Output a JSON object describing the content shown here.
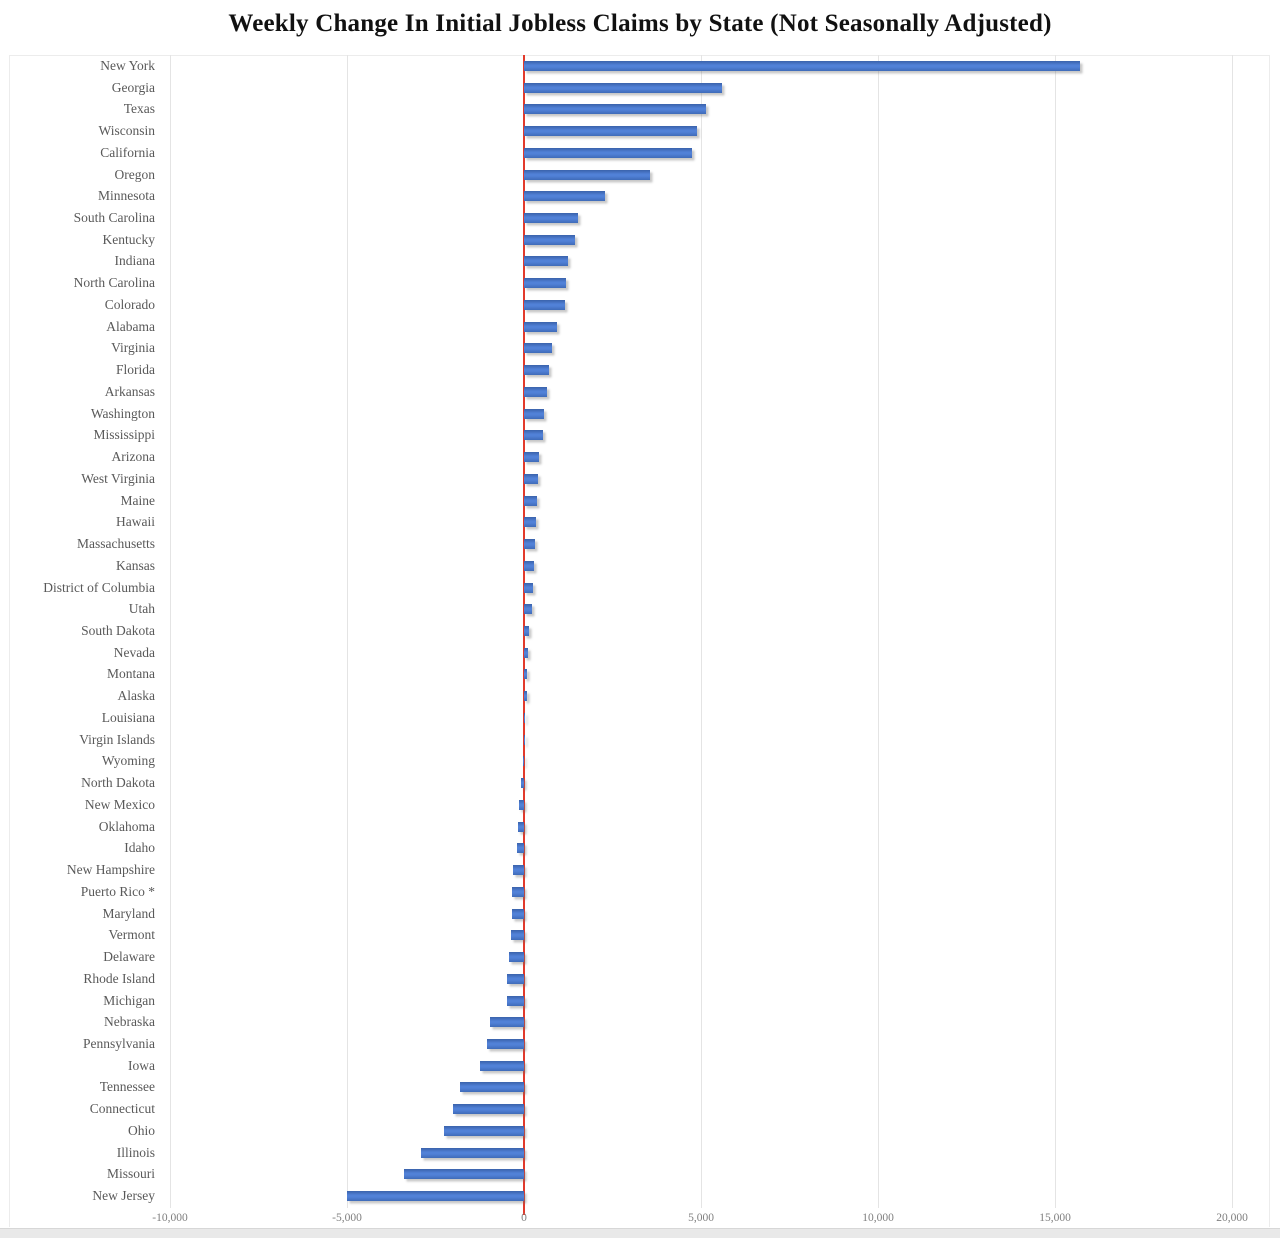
{
  "chart": {
    "title": "Weekly Change In Initial Jobless Claims by State (Not Seasonally Adjusted)",
    "colors": {
      "bar": "#4472c4",
      "zero_line": "#e23a2c",
      "gridline": "#e4e4e4",
      "axis_text": "#7f7f7f",
      "label_text": "#595959",
      "title_text": "#111111"
    }
  },
  "chart_data": {
    "type": "bar",
    "orientation": "horizontal",
    "title": "Weekly Change In Initial Jobless Claims by State (Not Seasonally Adjusted)",
    "xlabel": "",
    "ylabel": "",
    "xlim": [
      -10000,
      20000
    ],
    "grid": "vertical",
    "zero_baseline_highlighted": true,
    "sort": "descending",
    "x_ticks": {
      "values": [
        -10000,
        -5000,
        0,
        5000,
        10000,
        15000,
        20000
      ],
      "labels": [
        "-10,000",
        "-5,000",
        "0",
        "5,000",
        "10,000",
        "15,000",
        "20,000"
      ]
    },
    "categories": [
      "New York",
      "Georgia",
      "Texas",
      "Wisconsin",
      "California",
      "Oregon",
      "Minnesota",
      "South Carolina",
      "Kentucky",
      "Indiana",
      "North Carolina",
      "Colorado",
      "Alabama",
      "Virginia",
      "Florida",
      "Arkansas",
      "Washington",
      "Mississippi",
      "Arizona",
      "West Virginia",
      "Maine",
      "Hawaii",
      "Massachusetts",
      "Kansas",
      "District of Columbia",
      "Utah",
      "South Dakota",
      "Nevada",
      "Montana",
      "Alaska",
      "Louisiana",
      "Virgin Islands",
      "Wyoming",
      "North Dakota",
      "New Mexico",
      "Oklahoma",
      "Idaho",
      "New Hampshire",
      "Puerto Rico *",
      "Maryland",
      "Vermont",
      "Delaware",
      "Rhode Island",
      "Michigan",
      "Nebraska",
      "Pennsylvania",
      "Iowa",
      "Tennessee",
      "Connecticut",
      "Ohio",
      "Illinois",
      "Missouri",
      "New Jersey"
    ],
    "values": [
      15700,
      5600,
      5150,
      4900,
      4750,
      3550,
      2300,
      1525,
      1450,
      1250,
      1175,
      1150,
      925,
      790,
      715,
      660,
      560,
      530,
      410,
      395,
      375,
      345,
      315,
      290,
      245,
      215,
      140,
      105,
      90,
      75,
      25,
      10,
      -30,
      -85,
      -140,
      -160,
      -185,
      -310,
      -330,
      -350,
      -360,
      -420,
      -470,
      -485,
      -950,
      -1050,
      -1250,
      -1800,
      -2000,
      -2250,
      -2900,
      -3400,
      -5000
    ]
  }
}
